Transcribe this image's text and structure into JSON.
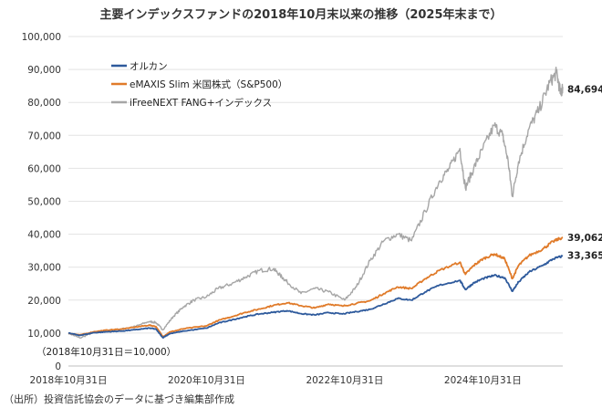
{
  "chart_data": {
    "type": "line",
    "title": "主要インデックスファンドの2018年10月末以来の推移（2025年末まで）",
    "xlabel": "",
    "ylabel": "",
    "x_ticks": [
      "2018年10月31日",
      "2020年10月31日",
      "2022年10月31日",
      "2024年10月31日"
    ],
    "x_tick_years": [
      2018.833,
      2020.833,
      2022.833,
      2024.833
    ],
    "xlim": [
      2018.833,
      2025.99
    ],
    "y_ticks": [
      "0",
      "10,000",
      "20,000",
      "30,000",
      "40,000",
      "50,000",
      "60,000",
      "70,000",
      "80,000",
      "90,000",
      "100,000"
    ],
    "ylim": [
      0,
      100000
    ],
    "grid": "horizontal",
    "legend_position": "top-left",
    "series": [
      {
        "name": "オルカン",
        "color": "#2e5a9c",
        "end_label": "33,365",
        "points": [
          [
            2018.833,
            10000
          ],
          [
            2019.0,
            9300
          ],
          [
            2019.2,
            10100
          ],
          [
            2019.4,
            10400
          ],
          [
            2019.6,
            10600
          ],
          [
            2019.8,
            11000
          ],
          [
            2020.0,
            11500
          ],
          [
            2020.1,
            11200
          ],
          [
            2020.2,
            8600
          ],
          [
            2020.3,
            9800
          ],
          [
            2020.5,
            10600
          ],
          [
            2020.833,
            11500
          ],
          [
            2021.0,
            13000
          ],
          [
            2021.2,
            14000
          ],
          [
            2021.4,
            15000
          ],
          [
            2021.6,
            15800
          ],
          [
            2021.8,
            16300
          ],
          [
            2022.0,
            16800
          ],
          [
            2022.2,
            15900
          ],
          [
            2022.4,
            15500
          ],
          [
            2022.6,
            16200
          ],
          [
            2022.8,
            15800
          ],
          [
            2023.0,
            16500
          ],
          [
            2023.2,
            17200
          ],
          [
            2023.4,
            18800
          ],
          [
            2023.6,
            20500
          ],
          [
            2023.8,
            20000
          ],
          [
            2024.0,
            22500
          ],
          [
            2024.2,
            24500
          ],
          [
            2024.5,
            26000
          ],
          [
            2024.58,
            23200
          ],
          [
            2024.7,
            25200
          ],
          [
            2024.833,
            26500
          ],
          [
            2025.0,
            27500
          ],
          [
            2025.15,
            26800
          ],
          [
            2025.26,
            22700
          ],
          [
            2025.35,
            25500
          ],
          [
            2025.5,
            28500
          ],
          [
            2025.7,
            30500
          ],
          [
            2025.85,
            32500
          ],
          [
            2025.99,
            33365
          ]
        ]
      },
      {
        "name": "eMAXIS Slim 米国株式（S&P500）",
        "color": "#e07b2a",
        "end_label": "39,062",
        "points": [
          [
            2018.833,
            10000
          ],
          [
            2019.0,
            9400
          ],
          [
            2019.2,
            10400
          ],
          [
            2019.4,
            10900
          ],
          [
            2019.6,
            11200
          ],
          [
            2019.8,
            11800
          ],
          [
            2020.0,
            12400
          ],
          [
            2020.1,
            12000
          ],
          [
            2020.2,
            8900
          ],
          [
            2020.3,
            10300
          ],
          [
            2020.5,
            11300
          ],
          [
            2020.833,
            12200
          ],
          [
            2021.0,
            13800
          ],
          [
            2021.2,
            15000
          ],
          [
            2021.4,
            16300
          ],
          [
            2021.6,
            17300
          ],
          [
            2021.8,
            18400
          ],
          [
            2022.0,
            19200
          ],
          [
            2022.2,
            18300
          ],
          [
            2022.4,
            17600
          ],
          [
            2022.6,
            18800
          ],
          [
            2022.8,
            18200
          ],
          [
            2023.0,
            19000
          ],
          [
            2023.2,
            19800
          ],
          [
            2023.4,
            22000
          ],
          [
            2023.6,
            24000
          ],
          [
            2023.8,
            23500
          ],
          [
            2024.0,
            26500
          ],
          [
            2024.2,
            29000
          ],
          [
            2024.5,
            31500
          ],
          [
            2024.58,
            27800
          ],
          [
            2024.7,
            30500
          ],
          [
            2024.833,
            32500
          ],
          [
            2025.0,
            34000
          ],
          [
            2025.15,
            32500
          ],
          [
            2025.26,
            26500
          ],
          [
            2025.35,
            30500
          ],
          [
            2025.5,
            33500
          ],
          [
            2025.7,
            35500
          ],
          [
            2025.85,
            37800
          ],
          [
            2025.99,
            39062
          ]
        ]
      },
      {
        "name": "iFreeNEXT FANG+インデックス",
        "color": "#a6a6a6",
        "end_label": "84,694",
        "points": [
          [
            2018.833,
            10000
          ],
          [
            2019.0,
            8500
          ],
          [
            2019.2,
            10200
          ],
          [
            2019.4,
            10800
          ],
          [
            2019.6,
            11200
          ],
          [
            2019.8,
            12000
          ],
          [
            2020.0,
            13500
          ],
          [
            2020.1,
            13200
          ],
          [
            2020.2,
            11000
          ],
          [
            2020.35,
            15000
          ],
          [
            2020.5,
            18000
          ],
          [
            2020.65,
            20000
          ],
          [
            2020.833,
            21000
          ],
          [
            2021.0,
            23500
          ],
          [
            2021.2,
            25000
          ],
          [
            2021.4,
            27000
          ],
          [
            2021.6,
            29000
          ],
          [
            2021.8,
            29500
          ],
          [
            2021.9,
            27500
          ],
          [
            2022.0,
            25500
          ],
          [
            2022.2,
            22000
          ],
          [
            2022.4,
            23500
          ],
          [
            2022.6,
            22500
          ],
          [
            2022.833,
            20000
          ],
          [
            2023.0,
            24000
          ],
          [
            2023.2,
            32000
          ],
          [
            2023.4,
            38000
          ],
          [
            2023.6,
            40000
          ],
          [
            2023.8,
            38000
          ],
          [
            2024.0,
            47000
          ],
          [
            2024.2,
            56000
          ],
          [
            2024.35,
            60000
          ],
          [
            2024.5,
            66000
          ],
          [
            2024.58,
            54000
          ],
          [
            2024.7,
            60000
          ],
          [
            2024.833,
            66000
          ],
          [
            2025.0,
            73000
          ],
          [
            2025.12,
            70000
          ],
          [
            2025.2,
            62000
          ],
          [
            2025.26,
            51500
          ],
          [
            2025.35,
            62000
          ],
          [
            2025.5,
            72000
          ],
          [
            2025.65,
            78000
          ],
          [
            2025.8,
            86000
          ],
          [
            2025.9,
            89000
          ],
          [
            2025.96,
            82500
          ],
          [
            2025.99,
            84694
          ]
        ]
      }
    ],
    "annotation": "（2018年10月31日＝10,000）",
    "source": "（出所）投資信託協会のデータに基づき編集部作成"
  }
}
